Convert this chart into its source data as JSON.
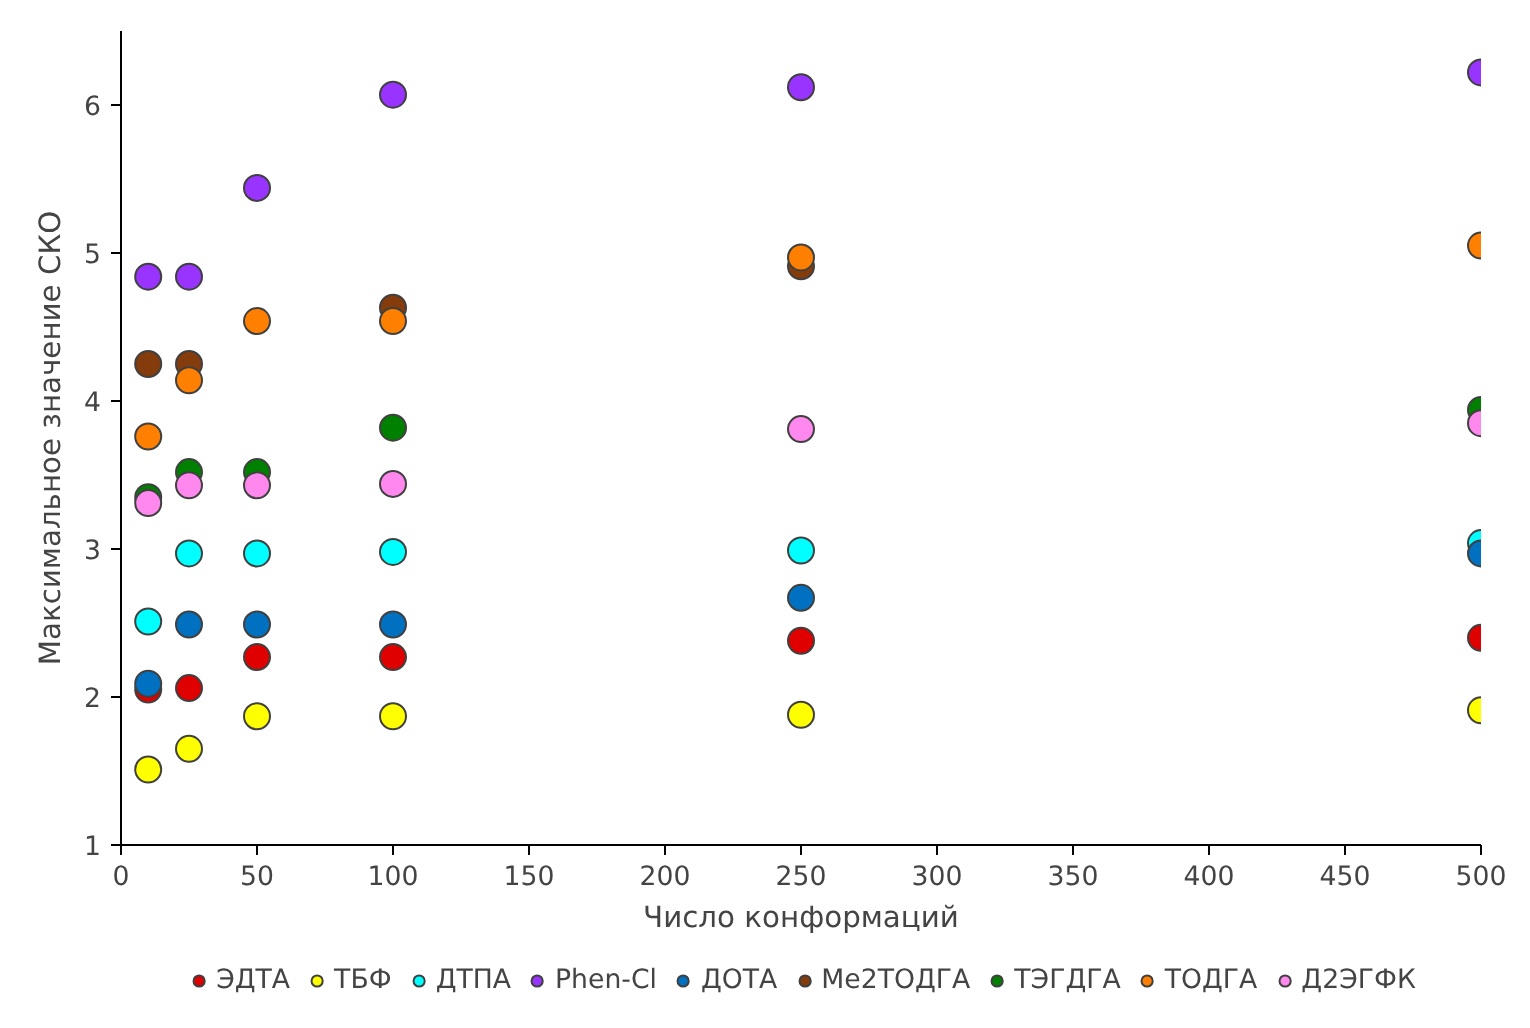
{
  "chart_data": {
    "type": "scatter",
    "xlabel": "Число конформаций",
    "ylabel": "Максимальное значение СКО",
    "x": [
      10,
      25,
      50,
      100,
      250,
      500
    ],
    "series": [
      {
        "name": "ЭДТА",
        "color": "#e00000",
        "values": [
          2.05,
          2.06,
          2.27,
          2.27,
          2.38,
          2.4
        ]
      },
      {
        "name": "ТБФ",
        "color": "#ffff00",
        "values": [
          1.51,
          1.65,
          1.87,
          1.87,
          1.88,
          1.91
        ]
      },
      {
        "name": "ДТПА",
        "color": "#00ffff",
        "values": [
          2.51,
          2.97,
          2.97,
          2.98,
          2.99,
          3.04
        ]
      },
      {
        "name": "Phen-Cl",
        "color": "#9933ff",
        "values": [
          4.84,
          4.84,
          5.44,
          6.07,
          6.12,
          6.22
        ]
      },
      {
        "name": "ДОТА",
        "color": "#0070c0",
        "values": [
          2.09,
          2.49,
          2.49,
          2.49,
          2.67,
          2.97
        ]
      },
      {
        "name": "Me2ТОДГА",
        "color": "#843c0c",
        "values": [
          4.25,
          4.25,
          null,
          4.63,
          4.91,
          null
        ]
      },
      {
        "name": "ТЭГДГА",
        "color": "#008000",
        "values": [
          3.35,
          3.52,
          3.52,
          3.82,
          null,
          3.94
        ]
      },
      {
        "name": "ТОДГА",
        "color": "#ff8000",
        "values": [
          3.76,
          4.14,
          4.54,
          4.54,
          4.97,
          5.05
        ]
      },
      {
        "name": "Д2ЭГФК",
        "color": "#ff88ee",
        "values": [
          3.31,
          3.43,
          3.43,
          3.44,
          3.81,
          3.85
        ]
      }
    ],
    "xlim": [
      0,
      500
    ],
    "xticks": [
      0,
      50,
      100,
      150,
      200,
      250,
      300,
      350,
      400,
      450,
      500
    ],
    "ylim": [
      1,
      6.5
    ],
    "yticks": [
      1,
      2,
      3,
      4,
      5,
      6
    ],
    "grid": false,
    "legend": "bottom",
    "marker": "circle"
  }
}
